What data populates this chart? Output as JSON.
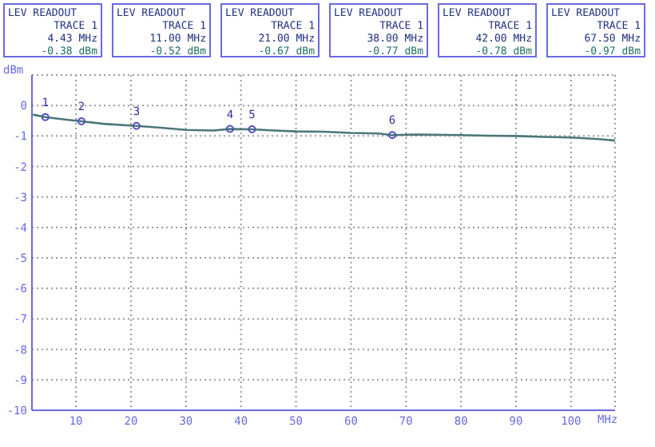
{
  "chart_data": {
    "type": "line",
    "xlabel": "MHz",
    "ylabel": "dBm",
    "x": [
      2.2,
      4.43,
      8,
      11,
      15,
      21,
      25,
      30,
      35,
      38,
      42,
      46,
      50,
      55,
      60,
      65,
      67.5,
      72,
      80,
      85,
      90,
      95,
      100,
      105,
      108
    ],
    "series": [
      {
        "color": "#4a7878",
        "values": [
          -0.3,
          -0.38,
          -0.46,
          -0.52,
          -0.6,
          -0.67,
          -0.72,
          -0.8,
          -0.82,
          -0.77,
          -0.78,
          -0.82,
          -0.85,
          -0.86,
          -0.9,
          -0.92,
          -0.97,
          -0.95,
          -0.97,
          -0.99,
          -1.0,
          -1.03,
          -1.05,
          -1.1,
          -1.15
        ]
      }
    ],
    "xlim": [
      2,
      108
    ],
    "xticks": [
      10,
      20,
      30,
      40,
      50,
      60,
      70,
      80,
      90,
      100
    ],
    "ylim": [
      -10,
      1
    ],
    "yticks": [
      0,
      -1,
      -2,
      -3,
      -4,
      -5,
      -6,
      -7,
      -8,
      -9,
      -10
    ],
    "grid": true,
    "marker": "none",
    "line_style": "solid",
    "annotations": [
      "LEV READOUT\nTRACE 1\n4.43 MHz\n-0.38 dBm",
      "LEV READOUT\nTRACE 1\n11.00 MHz\n-0.52 dBm",
      "LEV READOUT\nTRACE 1\n21.00 MHz\n-0.67 dBm",
      "LEV READOUT\nTRACE 1\n38.00 MHz\n-0.77 dBm",
      "LEV READOUT\nTRACE 1\n42.00 MHz\n-0.78 dBm",
      "LEV READOUT\nTRACE 1\n67.50 MHz\n-0.97 dBm",
      {
        "text": "1",
        "x": 4.43,
        "y": -0.38
      },
      {
        "text": "2",
        "x": 11,
        "y": -0.52
      },
      {
        "text": "3",
        "x": 21,
        "y": -0.67
      },
      {
        "text": "4",
        "x": 38,
        "y": -0.77
      },
      {
        "text": "5",
        "x": 42,
        "y": -0.78
      },
      {
        "text": "6",
        "x": 67.5,
        "y": -0.97
      }
    ]
  }
}
